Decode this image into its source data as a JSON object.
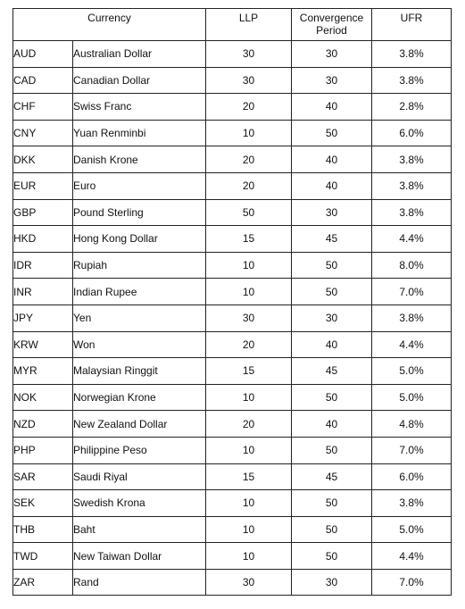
{
  "table": {
    "headers": {
      "currency": "Currency",
      "llp": "LLP",
      "convergence_line1": "Convergence",
      "convergence_line2": "Period",
      "ufr": "UFR"
    },
    "rows": [
      {
        "code": "AUD",
        "name": "Australian Dollar",
        "llp": "30",
        "convergence": "30",
        "ufr": "3.8%"
      },
      {
        "code": "CAD",
        "name": "Canadian Dollar",
        "llp": "30",
        "convergence": "30",
        "ufr": "3.8%"
      },
      {
        "code": "CHF",
        "name": "Swiss Franc",
        "llp": "20",
        "convergence": "40",
        "ufr": "2.8%"
      },
      {
        "code": "CNY",
        "name": "Yuan Renminbi",
        "llp": "10",
        "convergence": "50",
        "ufr": "6.0%"
      },
      {
        "code": "DKK",
        "name": "Danish Krone",
        "llp": "20",
        "convergence": "40",
        "ufr": "3.8%"
      },
      {
        "code": "EUR",
        "name": "Euro",
        "llp": "20",
        "convergence": "40",
        "ufr": "3.8%"
      },
      {
        "code": "GBP",
        "name": "Pound Sterling",
        "llp": "50",
        "convergence": "30",
        "ufr": "3.8%"
      },
      {
        "code": "HKD",
        "name": "Hong Kong Dollar",
        "llp": "15",
        "convergence": "45",
        "ufr": "4.4%"
      },
      {
        "code": "IDR",
        "name": "Rupiah",
        "llp": "10",
        "convergence": "50",
        "ufr": "8.0%"
      },
      {
        "code": "INR",
        "name": "Indian Rupee",
        "llp": "10",
        "convergence": "50",
        "ufr": "7.0%"
      },
      {
        "code": "JPY",
        "name": "Yen",
        "llp": "30",
        "convergence": "30",
        "ufr": "3.8%"
      },
      {
        "code": "KRW",
        "name": "Won",
        "llp": "20",
        "convergence": "40",
        "ufr": "4.4%"
      },
      {
        "code": "MYR",
        "name": "Malaysian Ringgit",
        "llp": "15",
        "convergence": "45",
        "ufr": "5.0%"
      },
      {
        "code": "NOK",
        "name": "Norwegian Krone",
        "llp": "10",
        "convergence": "50",
        "ufr": "5.0%"
      },
      {
        "code": "NZD",
        "name": "New Zealand Dollar",
        "llp": "20",
        "convergence": "40",
        "ufr": "4.8%"
      },
      {
        "code": "PHP",
        "name": "Philippine Peso",
        "llp": "10",
        "convergence": "50",
        "ufr": "7.0%"
      },
      {
        "code": "SAR",
        "name": "Saudi Riyal",
        "llp": "15",
        "convergence": "45",
        "ufr": "6.0%"
      },
      {
        "code": "SEK",
        "name": "Swedish Krona",
        "llp": "10",
        "convergence": "50",
        "ufr": "3.8%"
      },
      {
        "code": "THB",
        "name": "Baht",
        "llp": "10",
        "convergence": "50",
        "ufr": "5.0%"
      },
      {
        "code": "TWD",
        "name": "New Taiwan Dollar",
        "llp": "10",
        "convergence": "50",
        "ufr": "4.4%"
      },
      {
        "code": "ZAR",
        "name": "Rand",
        "llp": "30",
        "convergence": "30",
        "ufr": "7.0%"
      }
    ]
  }
}
